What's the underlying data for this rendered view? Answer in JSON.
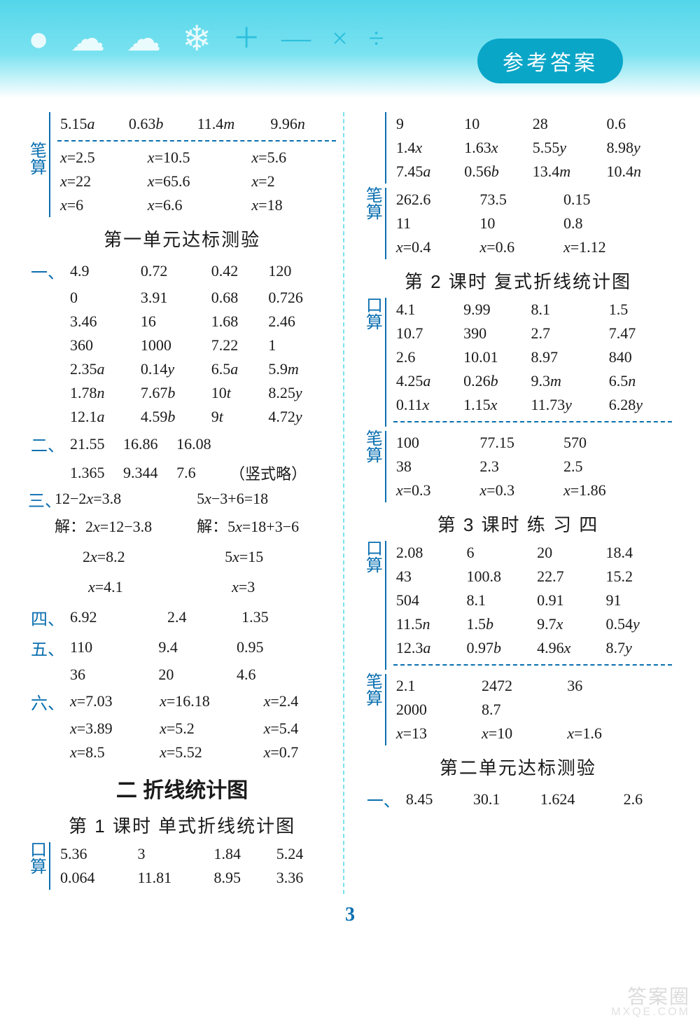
{
  "header": {
    "badge": "参考答案"
  },
  "pageNumber": "3",
  "watermark": {
    "line1": "答案圈",
    "line2": "MXQE.COM"
  },
  "labels": {
    "bisuan": "笔算",
    "kousuan": "口算"
  },
  "left": {
    "topRow": [
      "5.15a",
      "0.63b",
      "11.4m",
      "9.96n"
    ],
    "biEqs": [
      [
        "x=2.5",
        "x=10.5",
        "x=5.6"
      ],
      [
        "x=22",
        "x=65.6",
        "x=2"
      ],
      [
        "x=6",
        "x=6.6",
        "x=18"
      ]
    ],
    "unit1Title": "第一单元达标测验",
    "sec1Head": "一、",
    "sec1": [
      [
        "4.9",
        "0.72",
        "0.42",
        "120"
      ],
      [
        "0",
        "3.91",
        "0.68",
        "0.726"
      ],
      [
        "3.46",
        "16",
        "1.68",
        "2.46"
      ],
      [
        "360",
        "1000",
        "7.22",
        "1"
      ],
      [
        "2.35a",
        "0.14y",
        "6.5a",
        "5.9m"
      ],
      [
        "1.78n",
        "7.67b",
        "10t",
        "8.25y"
      ],
      [
        "12.1a",
        "4.59b",
        "9t",
        "4.72y"
      ]
    ],
    "sec2Head": "二、",
    "sec2": [
      [
        "21.55",
        "16.86",
        "16.08",
        ""
      ],
      [
        "1.365",
        "9.344",
        "7.6",
        "（竖式略）"
      ]
    ],
    "sec3Head": "三、",
    "sec3": {
      "eqA1": "12−2x=3.8",
      "eqB1": "5x−3+6=18",
      "eqA2": "解：2x=12−3.8",
      "eqB2": "解：5x=18+3−6",
      "eqA3": "2x=8.2",
      "eqB3": "5x=15",
      "eqA4": "x=4.1",
      "eqB4": "x=3"
    },
    "sec4Head": "四、",
    "sec4": [
      "6.92",
      "2.4",
      "1.35"
    ],
    "sec5Head": "五、",
    "sec5": [
      [
        "110",
        "9.4",
        "0.95"
      ],
      [
        "36",
        "20",
        "4.6"
      ]
    ],
    "sec6Head": "六、",
    "sec6": [
      [
        "x=7.03",
        "x=16.18",
        "x=2.4"
      ],
      [
        "x=3.89",
        "x=5.2",
        "x=5.4"
      ],
      [
        "x=8.5",
        "x=5.52",
        "x=0.7"
      ]
    ],
    "chapter2Title": "二  折线统计图",
    "lesson1Title": "第 1 课时  单式折线统计图",
    "kou1": [
      [
        "5.36",
        "3",
        "1.84",
        "5.24"
      ],
      [
        "0.064",
        "11.81",
        "8.95",
        "3.36"
      ]
    ]
  },
  "right": {
    "kouCont": [
      [
        "9",
        "10",
        "28",
        "0.6"
      ],
      [
        "1.4x",
        "1.63x",
        "5.55y",
        "8.98y"
      ],
      [
        "7.45a",
        "0.56b",
        "13.4m",
        "10.4n"
      ]
    ],
    "bi1": [
      [
        "262.6",
        "73.5",
        "0.15",
        ""
      ],
      [
        "11",
        "10",
        "0.8",
        ""
      ],
      [
        "x=0.4",
        "x=0.6",
        "x=1.12",
        ""
      ]
    ],
    "lesson2Title": "第 2 课时 复式折线统计图",
    "kou2": [
      [
        "4.1",
        "9.99",
        "8.1",
        "1.5"
      ],
      [
        "10.7",
        "390",
        "2.7",
        "7.47"
      ],
      [
        "2.6",
        "10.01",
        "8.97",
        "840"
      ],
      [
        "4.25a",
        "0.26b",
        "9.3m",
        "6.5n"
      ],
      [
        "0.11x",
        "1.15x",
        "11.73y",
        "6.28y"
      ]
    ],
    "bi2": [
      [
        "100",
        "77.15",
        "570",
        ""
      ],
      [
        "38",
        "2.3",
        "2.5",
        ""
      ],
      [
        "x=0.3",
        "x=0.3",
        "x=1.86",
        ""
      ]
    ],
    "lesson3Title": "第 3 课时  练   习   四",
    "kou3": [
      [
        "2.08",
        "6",
        "20",
        "18.4"
      ],
      [
        "43",
        "100.8",
        "22.7",
        "15.2"
      ],
      [
        "504",
        "8.1",
        "0.91",
        "91"
      ],
      [
        "11.5n",
        "1.5b",
        "9.7x",
        "0.54y"
      ],
      [
        "12.3a",
        "0.97b",
        "4.96x",
        "8.7y"
      ]
    ],
    "bi3": [
      [
        "2.1",
        "2472",
        "36",
        ""
      ],
      [
        "2000",
        "8.7",
        "",
        ""
      ],
      [
        "x=13",
        "x=10",
        "x=1.6",
        ""
      ]
    ],
    "unit2Title": "第二单元达标测验",
    "sec1Head": "一、",
    "sec1": [
      "8.45",
      "30.1",
      "1.624",
      "2.6"
    ]
  }
}
